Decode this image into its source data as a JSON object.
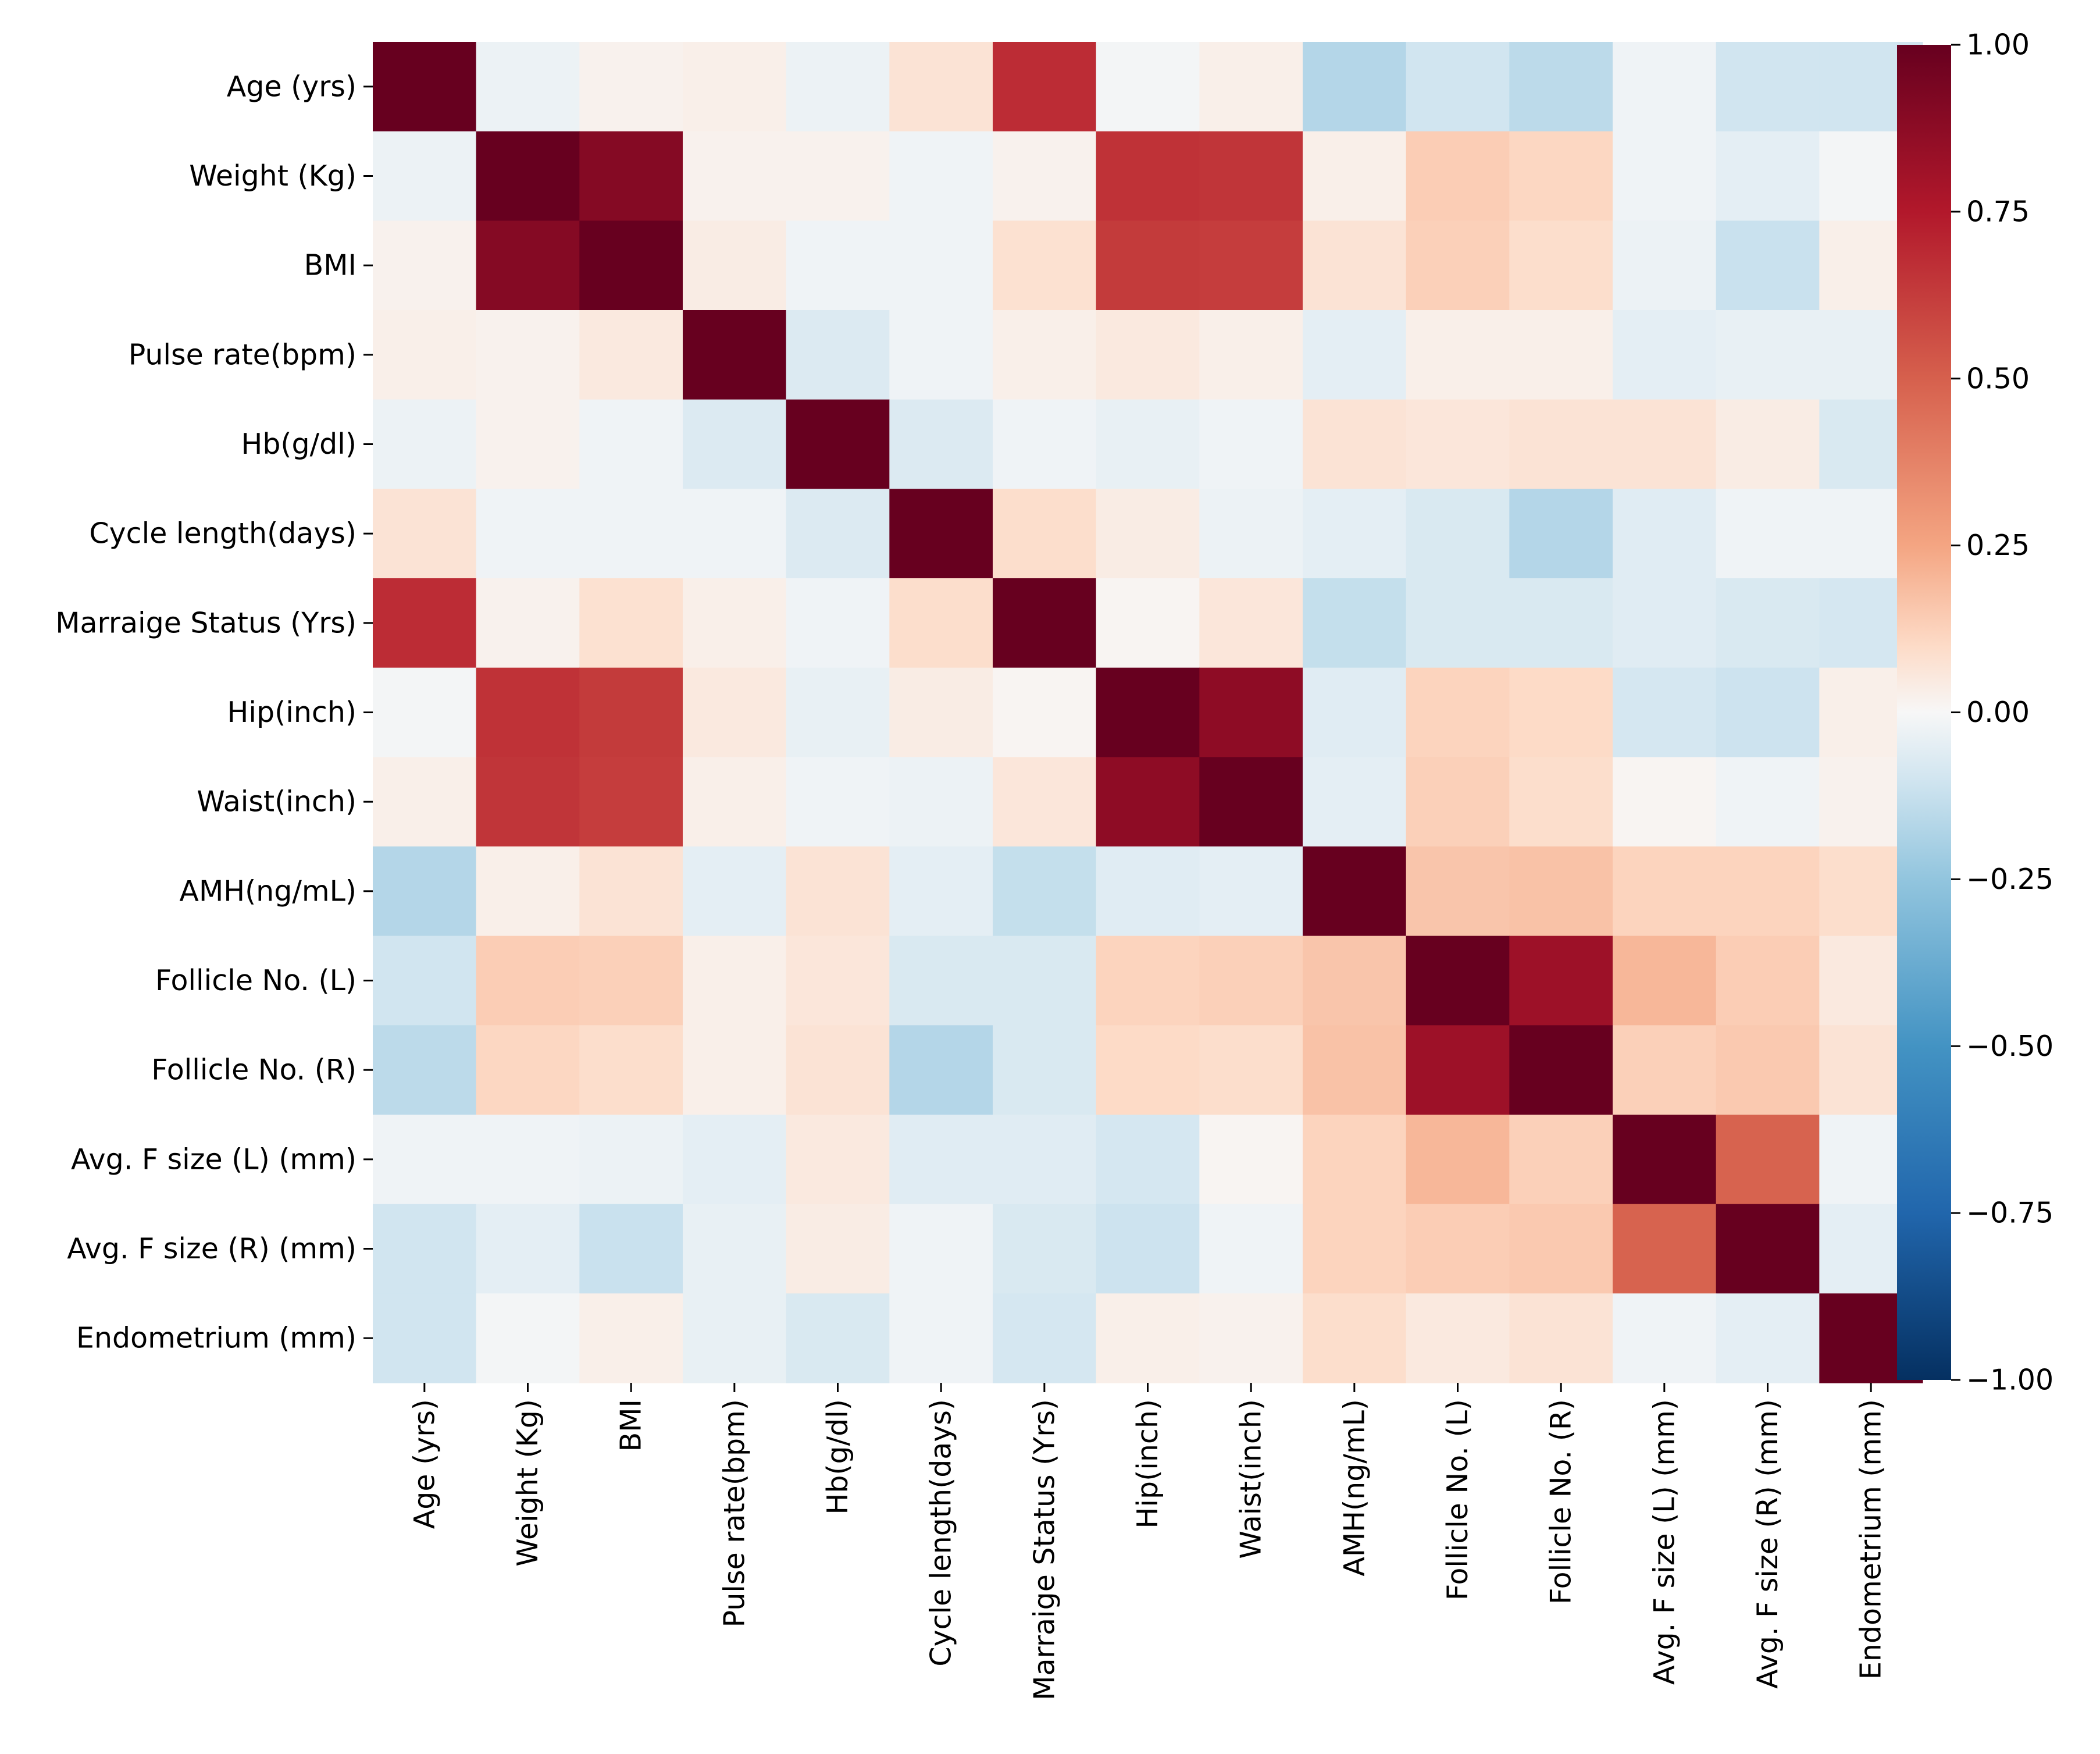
{
  "chart_data": {
    "type": "heatmap",
    "title": "",
    "xlabel": "",
    "ylabel": "",
    "row_labels": [
      "Age (yrs)",
      "Weight (Kg)",
      "BMI",
      "Pulse rate(bpm) ",
      "Hb(g/dl)",
      "Cycle length(days)",
      "Marraige Status (Yrs)",
      "Hip(inch)",
      "Waist(inch)",
      "AMH(ng/mL)",
      "Follicle No. (L)",
      "Follicle No. (R)",
      "Avg. F size (L) (mm)",
      "Avg. F size (R) (mm)",
      "Endometrium (mm)"
    ],
    "col_labels": [
      "Age (yrs)",
      "Weight (Kg)",
      "BMI",
      "Pulse rate(bpm)",
      "Hb(g/dl)",
      "Cycle length(days)",
      "Marraige Status (Yrs)",
      "Hip(inch)",
      "Waist(inch)",
      "AMH(ng/mL)",
      "Follicle No. (L)",
      "Follicle No. (R)",
      "Avg. F size (L) (mm)",
      "Avg. F size (R) (mm)",
      "Endometrium (mm)"
    ],
    "values": [
      [
        1.0,
        -0.03,
        0.02,
        0.03,
        -0.03,
        0.07,
        0.68,
        -0.01,
        0.03,
        -0.17,
        -0.1,
        -0.15,
        -0.02,
        -0.1,
        -0.1
      ],
      [
        -0.03,
        1.0,
        0.9,
        0.02,
        0.02,
        -0.02,
        0.02,
        0.66,
        0.65,
        0.03,
        0.14,
        0.11,
        -0.02,
        -0.05,
        -0.01
      ],
      [
        0.02,
        0.9,
        1.0,
        0.04,
        -0.02,
        -0.02,
        0.08,
        0.63,
        0.62,
        0.07,
        0.13,
        0.09,
        -0.03,
        -0.12,
        0.03
      ],
      [
        0.03,
        0.02,
        0.05,
        1.0,
        -0.07,
        -0.02,
        0.03,
        0.05,
        0.03,
        -0.05,
        0.03,
        0.03,
        -0.05,
        -0.04,
        -0.04
      ],
      [
        -0.03,
        0.02,
        -0.02,
        -0.07,
        1.0,
        -0.07,
        -0.02,
        -0.04,
        -0.02,
        0.07,
        0.06,
        0.07,
        0.07,
        0.04,
        -0.08
      ],
      [
        0.07,
        -0.02,
        -0.02,
        -0.02,
        -0.07,
        1.0,
        0.09,
        0.04,
        -0.03,
        -0.05,
        -0.08,
        -0.17,
        -0.06,
        -0.02,
        -0.02
      ],
      [
        0.68,
        0.02,
        0.08,
        0.03,
        -0.02,
        0.09,
        1.0,
        0.01,
        0.06,
        -0.13,
        -0.08,
        -0.08,
        -0.06,
        -0.08,
        -0.09
      ],
      [
        -0.01,
        0.66,
        0.63,
        0.05,
        -0.04,
        0.04,
        0.01,
        1.0,
        0.87,
        -0.06,
        0.12,
        0.1,
        -0.09,
        -0.11,
        0.03
      ],
      [
        0.03,
        0.65,
        0.62,
        0.03,
        -0.02,
        -0.03,
        0.06,
        0.87,
        1.0,
        -0.05,
        0.13,
        0.09,
        0.01,
        -0.02,
        0.02
      ],
      [
        -0.17,
        0.03,
        0.07,
        -0.05,
        0.07,
        -0.05,
        -0.13,
        -0.06,
        -0.05,
        1.0,
        0.16,
        0.17,
        0.12,
        0.12,
        0.09
      ],
      [
        -0.1,
        0.14,
        0.13,
        0.03,
        0.06,
        -0.08,
        -0.08,
        0.12,
        0.13,
        0.16,
        1.0,
        0.82,
        0.2,
        0.14,
        0.05
      ],
      [
        -0.15,
        0.11,
        0.09,
        0.03,
        0.07,
        -0.17,
        -0.08,
        0.1,
        0.09,
        0.17,
        0.82,
        1.0,
        0.13,
        0.15,
        0.07
      ],
      [
        -0.02,
        -0.02,
        -0.03,
        -0.05,
        0.05,
        -0.06,
        -0.06,
        -0.09,
        0.01,
        0.12,
        0.2,
        0.13,
        1.0,
        0.49,
        -0.02
      ],
      [
        -0.1,
        -0.05,
        -0.12,
        -0.04,
        0.04,
        -0.02,
        -0.08,
        -0.11,
        -0.02,
        0.12,
        0.14,
        0.15,
        0.49,
        1.0,
        -0.05
      ],
      [
        -0.1,
        -0.01,
        0.03,
        -0.04,
        -0.08,
        -0.02,
        -0.09,
        0.03,
        0.02,
        0.09,
        0.05,
        0.07,
        -0.02,
        -0.05,
        1.0
      ]
    ],
    "colormap": "RdBu_r",
    "vmin": -1.0,
    "vmax": 1.0,
    "colorbar": {
      "ticks": [
        1.0,
        0.75,
        0.5,
        0.25,
        0.0,
        -0.25,
        -0.5,
        -0.75,
        -1.0
      ],
      "tick_labels": [
        "1.00",
        "0.75",
        "0.50",
        "0.25",
        "0.00",
        "−0.25",
        "−0.50",
        "−0.75",
        "−1.00"
      ],
      "placement": "right"
    },
    "colormap_stops": [
      {
        "v": -1.0,
        "c": "#053061"
      },
      {
        "v": -0.75,
        "c": "#2166ac"
      },
      {
        "v": -0.5,
        "c": "#4393c3"
      },
      {
        "v": -0.25,
        "c": "#92c5de"
      },
      {
        "v": -0.1,
        "c": "#d1e5f0"
      },
      {
        "v": 0.0,
        "c": "#f7f7f7"
      },
      {
        "v": 0.1,
        "c": "#fddbc7"
      },
      {
        "v": 0.25,
        "c": "#f4a582"
      },
      {
        "v": 0.5,
        "c": "#d6604d"
      },
      {
        "v": 0.75,
        "c": "#b2182b"
      },
      {
        "v": 1.0,
        "c": "#67001f"
      }
    ]
  }
}
